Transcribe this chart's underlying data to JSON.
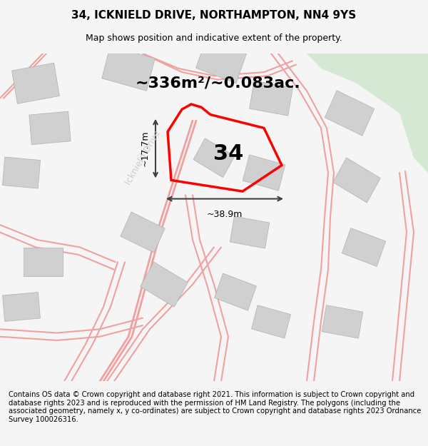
{
  "title": "34, ICKNIELD DRIVE, NORTHAMPTON, NN4 9YS",
  "subtitle": "Map shows position and indicative extent of the property.",
  "area_text": "~336m²/~0.083ac.",
  "number_label": "34",
  "width_label": "~38.9m",
  "height_label": "~17.7m",
  "road_label": "Icknield Drive",
  "footer": "Contains OS data © Crown copyright and database right 2021. This information is subject to Crown copyright and database rights 2023 and is reproduced with the permission of HM Land Registry. The polygons (including the associated geometry, namely x, y co-ordinates) are subject to Crown copyright and database rights 2023 Ordnance Survey 100026316.",
  "bg_color": "#f5f5f5",
  "map_bg": "#ffffff",
  "plot_color_fill": "none",
  "plot_color_edge": "#ff0000",
  "building_color": "#d3d3d3",
  "road_line_color": "#f0a0a0",
  "green_area_color": "#d4e8d4",
  "title_fontsize": 11,
  "subtitle_fontsize": 9,
  "footer_fontsize": 7.2
}
